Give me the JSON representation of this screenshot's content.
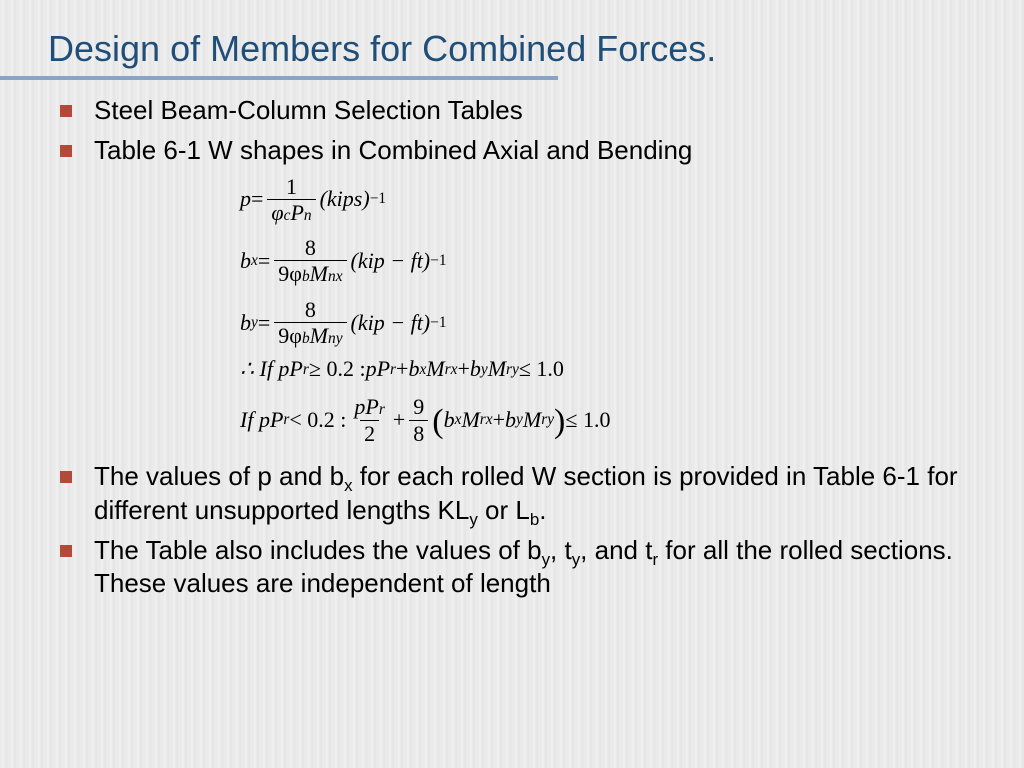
{
  "colors": {
    "title": "#1f4e79",
    "rule": "#8aa4c8",
    "bullet": "#b24a3a",
    "text": "#000000",
    "bg_stripe_a": "#e8e8e8",
    "bg_stripe_b": "#f0f0f0"
  },
  "title": "Design of Members for Combined Forces.",
  "bullets": {
    "b1": "Steel Beam-Column Selection Tables",
    "b2": "Table 6-1 W shapes in Combined Axial and Bending",
    "b3_pre": "The values of p and b",
    "b3_sub1": "x",
    "b3_mid": " for each rolled W section is provided in Table 6-1 for different unsupported lengths KL",
    "b3_sub2": "y",
    "b3_mid2": " or L",
    "b3_sub3": "b",
    "b3_end": ".",
    "b4_pre": "The Table also includes the values of b",
    "b4_s1": "y",
    "b4_m1": ", t",
    "b4_s2": "y",
    "b4_m2": ", and t",
    "b4_s3": "r",
    "b4_end": " for all the rolled sections. These values are independent of length"
  },
  "eq": {
    "p_lhs": "p",
    "eq_sign": " = ",
    "one": "1",
    "phi_c_Pn": "φ",
    "phi_c_sub": "c",
    "Pn": "P",
    "Pn_sub": "n",
    "kips": "(kips)",
    "neg1": "−1",
    "bx_lhs": "b",
    "bx_sub": "x",
    "eight": "8",
    "nine_phi_b": "9φ",
    "phi_b_sub": "b",
    "M": "M",
    "nx_sub": "nx",
    "kip_ft": "(kip − ft)",
    "by_lhs": "b",
    "by_sub": "y",
    "ny_sub": "ny",
    "therefore": "∴ If pP",
    "r_sub": "r",
    "ge02": " ≥ 0.2 : ",
    "pPr": "pP",
    "plus": " + ",
    "bxMrx": "b",
    "rx_sub": "rx",
    "byMry": "b",
    "ry_sub": "ry",
    "le1": " ≤ 1.0",
    "if_lt": "If pP",
    "lt02": " < 0.2 : ",
    "two": "2",
    "nine": "9",
    "eight2": "8"
  }
}
